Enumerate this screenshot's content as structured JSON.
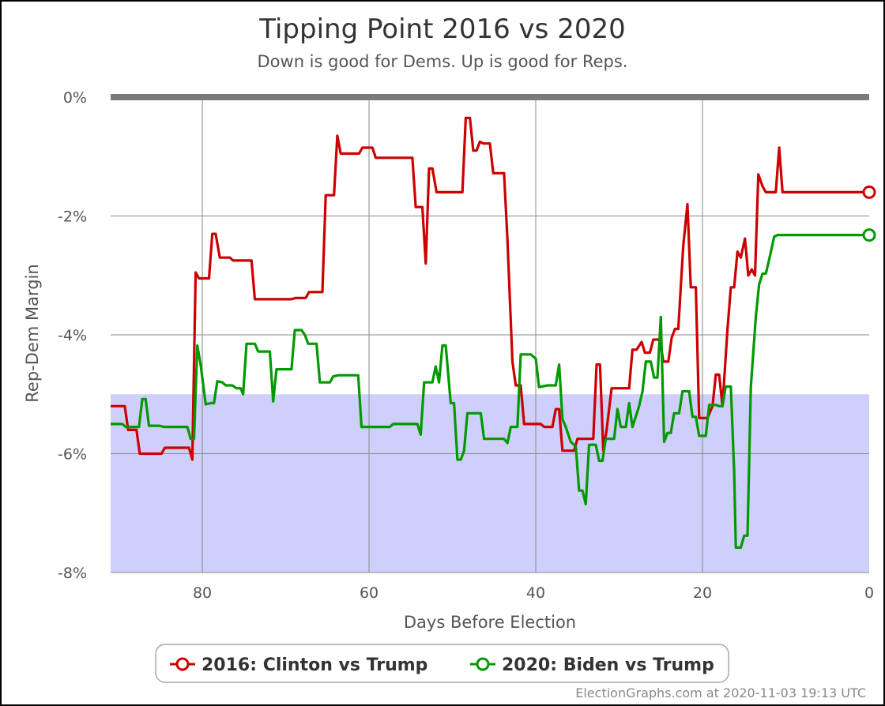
{
  "chart_data": {
    "type": "line",
    "title": "Tipping Point 2016 vs 2020",
    "subtitle": "Down is good for Dems. Up is good for Reps.",
    "xlabel": "Days Before Election",
    "ylabel": "Rep-Dem Margin",
    "xlim": [
      91,
      0
    ],
    "ylim": [
      -8,
      0
    ],
    "x_ticks": [
      80,
      60,
      40,
      20,
      0
    ],
    "x_tick_labels": [
      "80",
      "60",
      "40",
      "20",
      "0"
    ],
    "y_ticks": [
      0,
      -2,
      -4,
      -6,
      -8
    ],
    "y_tick_labels": [
      "0%",
      "-2%",
      "-4%",
      "-6%",
      "-8%"
    ],
    "shaded_band": {
      "from": -8,
      "to": -5,
      "color": "#cfcffb"
    },
    "zero_line_color": "#7a7a7a",
    "grid": true,
    "legend_position": "bottom",
    "series": [
      {
        "name": "2016: Clinton vs Trump",
        "color": "#cc0000",
        "points": [
          [
            91,
            -5.2
          ],
          [
            89.3,
            -5.2
          ],
          [
            88.9,
            -5.6
          ],
          [
            87.9,
            -5.6
          ],
          [
            87.5,
            -6.0
          ],
          [
            84.9,
            -6.0
          ],
          [
            84.5,
            -5.9
          ],
          [
            81.6,
            -5.9
          ],
          [
            81.2,
            -6.1
          ],
          [
            80.8,
            -2.95
          ],
          [
            80.4,
            -3.05
          ],
          [
            79.2,
            -3.05
          ],
          [
            78.8,
            -2.3
          ],
          [
            78.4,
            -2.3
          ],
          [
            77.9,
            -2.7
          ],
          [
            76.7,
            -2.7
          ],
          [
            76.3,
            -2.75
          ],
          [
            74.1,
            -2.75
          ],
          [
            73.7,
            -3.4
          ],
          [
            69.3,
            -3.4
          ],
          [
            68.8,
            -3.38
          ],
          [
            67.6,
            -3.38
          ],
          [
            67.2,
            -3.28
          ],
          [
            65.6,
            -3.28
          ],
          [
            65.2,
            -1.65
          ],
          [
            64.2,
            -1.65
          ],
          [
            63.8,
            -0.65
          ],
          [
            63.4,
            -0.95
          ],
          [
            61.2,
            -0.95
          ],
          [
            60.8,
            -0.85
          ],
          [
            59.6,
            -0.85
          ],
          [
            59.2,
            -1.02
          ],
          [
            54.8,
            -1.02
          ],
          [
            54.4,
            -1.85
          ],
          [
            53.6,
            -1.85
          ],
          [
            53.2,
            -2.8
          ],
          [
            52.8,
            -1.2
          ],
          [
            52.4,
            -1.2
          ],
          [
            51.9,
            -1.6
          ],
          [
            48.8,
            -1.6
          ],
          [
            48.4,
            -0.35
          ],
          [
            47.9,
            -0.35
          ],
          [
            47.5,
            -0.9
          ],
          [
            47.1,
            -0.9
          ],
          [
            46.7,
            -0.75
          ],
          [
            46.3,
            -0.78
          ],
          [
            45.5,
            -0.78
          ],
          [
            45.1,
            -1.28
          ],
          [
            43.8,
            -1.28
          ],
          [
            43.4,
            -2.4
          ],
          [
            42.8,
            -4.45
          ],
          [
            42.4,
            -4.85
          ],
          [
            41.8,
            -4.85
          ],
          [
            41.4,
            -5.5
          ],
          [
            39.4,
            -5.5
          ],
          [
            39,
            -5.55
          ],
          [
            38,
            -5.55
          ],
          [
            37.6,
            -5.25
          ],
          [
            37.2,
            -5.25
          ],
          [
            36.8,
            -5.95
          ],
          [
            35.4,
            -5.95
          ],
          [
            35,
            -5.75
          ],
          [
            33.1,
            -5.75
          ],
          [
            32.7,
            -4.5
          ],
          [
            32.3,
            -4.5
          ],
          [
            31.9,
            -5.95
          ],
          [
            31.5,
            -5.6
          ],
          [
            30.9,
            -4.9
          ],
          [
            28.8,
            -4.9
          ],
          [
            28.4,
            -4.25
          ],
          [
            27.9,
            -4.25
          ],
          [
            27.3,
            -4.12
          ],
          [
            26.9,
            -4.3
          ],
          [
            26.3,
            -4.3
          ],
          [
            25.9,
            -4.08
          ],
          [
            25.1,
            -4.08
          ],
          [
            24.7,
            -4.45
          ],
          [
            24.1,
            -4.45
          ],
          [
            23.7,
            -4.05
          ],
          [
            23.3,
            -3.9
          ],
          [
            22.9,
            -3.9
          ],
          [
            22.3,
            -2.5
          ],
          [
            21.8,
            -1.8
          ],
          [
            21.4,
            -3.2
          ],
          [
            20.8,
            -3.2
          ],
          [
            20.4,
            -5.4
          ],
          [
            19.4,
            -5.4
          ],
          [
            18.8,
            -5.2
          ],
          [
            18.4,
            -4.67
          ],
          [
            18,
            -4.67
          ],
          [
            17.6,
            -5.2
          ],
          [
            17,
            -3.9
          ],
          [
            16.6,
            -3.2
          ],
          [
            16.2,
            -3.2
          ],
          [
            15.8,
            -2.6
          ],
          [
            15.4,
            -2.7
          ],
          [
            14.9,
            -2.38
          ],
          [
            14.5,
            -3.0
          ],
          [
            14.1,
            -2.9
          ],
          [
            13.7,
            -3.0
          ],
          [
            13.3,
            -1.3
          ],
          [
            12.8,
            -1.5
          ],
          [
            12.4,
            -1.6
          ],
          [
            11.2,
            -1.6
          ],
          [
            10.8,
            -0.85
          ],
          [
            10.4,
            -1.6
          ],
          [
            9.8,
            -1.6
          ],
          [
            0,
            -1.6
          ]
        ]
      },
      {
        "name": "2020: Biden vs Trump",
        "color": "#009900",
        "points": [
          [
            91,
            -5.5
          ],
          [
            89.6,
            -5.5
          ],
          [
            89.2,
            -5.55
          ],
          [
            87.6,
            -5.55
          ],
          [
            87.2,
            -5.08
          ],
          [
            86.8,
            -5.08
          ],
          [
            86.4,
            -5.53
          ],
          [
            85.2,
            -5.53
          ],
          [
            84.6,
            -5.55
          ],
          [
            81.8,
            -5.55
          ],
          [
            81.4,
            -5.75
          ],
          [
            81,
            -5.75
          ],
          [
            80.6,
            -4.18
          ],
          [
            80.2,
            -4.5
          ],
          [
            79.6,
            -5.17
          ],
          [
            79,
            -5.15
          ],
          [
            78.6,
            -5.15
          ],
          [
            78.2,
            -4.78
          ],
          [
            77.6,
            -4.8
          ],
          [
            77.2,
            -4.85
          ],
          [
            76.4,
            -4.85
          ],
          [
            75.9,
            -4.9
          ],
          [
            75.4,
            -4.9
          ],
          [
            75.1,
            -5.0
          ],
          [
            74.7,
            -4.15
          ],
          [
            73.7,
            -4.15
          ],
          [
            73.3,
            -4.28
          ],
          [
            71.9,
            -4.28
          ],
          [
            71.5,
            -5.12
          ],
          [
            71.1,
            -4.58
          ],
          [
            69.3,
            -4.58
          ],
          [
            68.9,
            -3.92
          ],
          [
            68.1,
            -3.92
          ],
          [
            67.7,
            -4.0
          ],
          [
            67.3,
            -4.15
          ],
          [
            66.3,
            -4.15
          ],
          [
            65.9,
            -4.8
          ],
          [
            64.7,
            -4.8
          ],
          [
            64.3,
            -4.7
          ],
          [
            63.7,
            -4.68
          ],
          [
            61.3,
            -4.68
          ],
          [
            60.9,
            -5.55
          ],
          [
            57.5,
            -5.55
          ],
          [
            57.1,
            -5.5
          ],
          [
            54.2,
            -5.5
          ],
          [
            53.8,
            -5.68
          ],
          [
            53.4,
            -4.8
          ],
          [
            52.4,
            -4.8
          ],
          [
            52,
            -4.53
          ],
          [
            51.6,
            -4.8
          ],
          [
            51.2,
            -4.18
          ],
          [
            50.8,
            -4.18
          ],
          [
            50.2,
            -5.15
          ],
          [
            49.8,
            -5.15
          ],
          [
            49.4,
            -6.1
          ],
          [
            49,
            -6.1
          ],
          [
            48.6,
            -5.95
          ],
          [
            48.2,
            -5.32
          ],
          [
            46.6,
            -5.32
          ],
          [
            46.2,
            -5.75
          ],
          [
            43.8,
            -5.75
          ],
          [
            43.4,
            -5.82
          ],
          [
            43,
            -5.55
          ],
          [
            42.2,
            -5.55
          ],
          [
            41.8,
            -4.33
          ],
          [
            40.6,
            -4.33
          ],
          [
            40,
            -4.4
          ],
          [
            39.6,
            -4.88
          ],
          [
            38.6,
            -4.85
          ],
          [
            37.6,
            -4.85
          ],
          [
            37.2,
            -4.5
          ],
          [
            36.8,
            -5.42
          ],
          [
            36.4,
            -5.55
          ],
          [
            35.8,
            -5.8
          ],
          [
            35.2,
            -5.88
          ],
          [
            34.8,
            -6.62
          ],
          [
            34.4,
            -6.62
          ],
          [
            34,
            -6.85
          ],
          [
            33.6,
            -5.85
          ],
          [
            32.8,
            -5.85
          ],
          [
            32.4,
            -6.12
          ],
          [
            32,
            -6.12
          ],
          [
            31.6,
            -5.75
          ],
          [
            30.6,
            -5.75
          ],
          [
            30.2,
            -5.25
          ],
          [
            29.8,
            -5.55
          ],
          [
            29.2,
            -5.55
          ],
          [
            28.8,
            -5.15
          ],
          [
            28.4,
            -5.55
          ],
          [
            27.6,
            -5.2
          ],
          [
            27.2,
            -4.95
          ],
          [
            26.8,
            -4.45
          ],
          [
            26.2,
            -4.45
          ],
          [
            25.8,
            -4.72
          ],
          [
            25.4,
            -4.72
          ],
          [
            25,
            -3.7
          ],
          [
            24.6,
            -5.8
          ],
          [
            24.2,
            -5.65
          ],
          [
            23.8,
            -5.65
          ],
          [
            23.4,
            -5.32
          ],
          [
            22.8,
            -5.32
          ],
          [
            22.4,
            -4.95
          ],
          [
            21.6,
            -4.95
          ],
          [
            21.2,
            -5.38
          ],
          [
            20.8,
            -5.38
          ],
          [
            20.4,
            -5.7
          ],
          [
            19.6,
            -5.7
          ],
          [
            19.2,
            -5.18
          ],
          [
            18.4,
            -5.18
          ],
          [
            18,
            -5.2
          ],
          [
            17.6,
            -5.2
          ],
          [
            17.2,
            -4.87
          ],
          [
            16.6,
            -4.87
          ],
          [
            16.2,
            -6.3
          ],
          [
            16,
            -7.58
          ],
          [
            15.4,
            -7.58
          ],
          [
            15,
            -7.38
          ],
          [
            14.6,
            -7.38
          ],
          [
            14.2,
            -4.88
          ],
          [
            13.6,
            -3.7
          ],
          [
            13.2,
            -3.15
          ],
          [
            12.8,
            -2.97
          ],
          [
            12.4,
            -2.97
          ],
          [
            11.9,
            -2.67
          ],
          [
            11.4,
            -2.35
          ],
          [
            11,
            -2.32
          ],
          [
            0,
            -2.32
          ]
        ]
      }
    ],
    "legend": {
      "items": [
        "2016: Clinton vs Trump",
        "2020: Biden vs Trump"
      ]
    },
    "credit": "ElectionGraphs.com at 2020-11-03 19:13 UTC"
  }
}
